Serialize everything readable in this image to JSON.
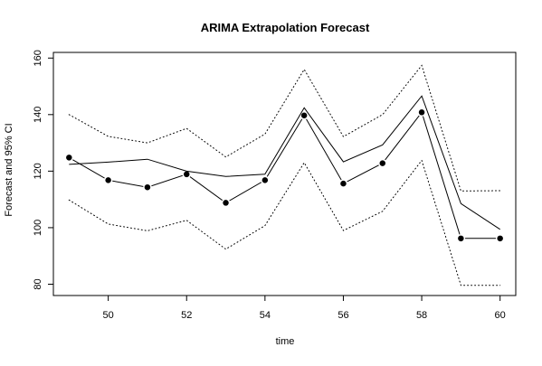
{
  "chart_data": {
    "type": "line",
    "title": "ARIMA Extrapolation Forecast",
    "xlabel": "time",
    "ylabel": "Forecast and 95% CI",
    "xlim": [
      48.6,
      60.4
    ],
    "ylim": [
      76,
      162
    ],
    "x_ticks": [
      50,
      52,
      54,
      56,
      58,
      60
    ],
    "y_ticks": [
      80,
      100,
      120,
      140,
      160
    ],
    "grid": false,
    "legend": "none",
    "x": [
      49,
      50,
      51,
      52,
      53,
      54,
      55,
      56,
      57,
      58,
      59,
      60
    ],
    "series": [
      {
        "role": "actual",
        "style": "points-with-line",
        "values": [
          124.8,
          116.8,
          114.3,
          118.9,
          108.8,
          116.8,
          139.7,
          115.6,
          122.8,
          140.8,
          96.2,
          96.2
        ]
      },
      {
        "role": "forecast",
        "style": "line",
        "values": [
          122.4,
          123.2,
          124.2,
          120.0,
          118.1,
          118.9,
          142.4,
          123.3,
          129.3,
          146.6,
          108.5,
          99.4
        ]
      },
      {
        "role": "upper-95",
        "style": "dotted",
        "values": [
          140.0,
          132.3,
          130.0,
          135.1,
          125.0,
          133.1,
          156.0,
          132.2,
          140.0,
          157.4,
          113.0,
          113.1
        ]
      },
      {
        "role": "lower-95",
        "style": "dotted",
        "values": [
          109.8,
          101.3,
          98.9,
          102.6,
          92.4,
          100.7,
          123.0,
          99.0,
          105.8,
          123.8,
          79.6,
          79.6
        ]
      }
    ],
    "colors": {
      "line": "#000000",
      "background": "#ffffff"
    }
  }
}
